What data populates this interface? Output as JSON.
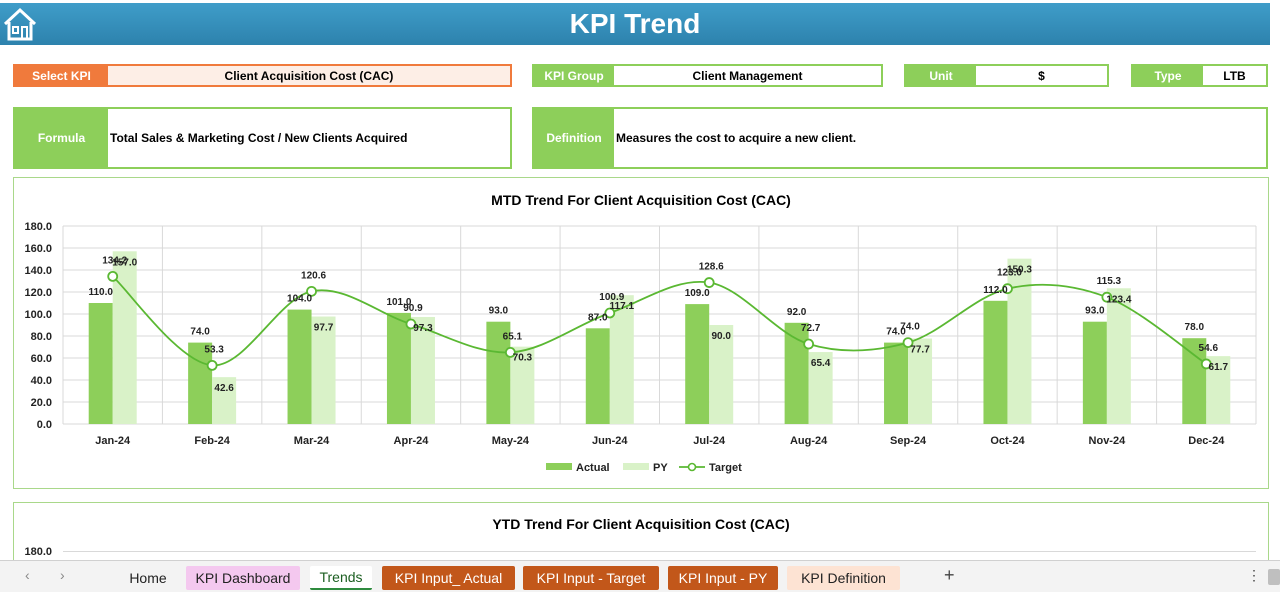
{
  "header": {
    "title": "KPI Trend",
    "home_icon": "home-icon"
  },
  "selectors": {
    "select_kpi": {
      "label": "Select KPI",
      "value": "Client Acquisition Cost (CAC)"
    },
    "kpi_group": {
      "label": "KPI Group",
      "value": "Client Management"
    },
    "unit": {
      "label": "Unit",
      "value": "$"
    },
    "type": {
      "label": "Type",
      "value": "LTB"
    }
  },
  "formula": {
    "label": "Formula",
    "value": "Total Sales & Marketing Cost / New Clients Acquired"
  },
  "definition": {
    "label": "Definition",
    "value": "Measures the cost to acquire a new client."
  },
  "colors": {
    "actual": "#8dcf5a",
    "py": "#d9f2c8",
    "target": "#5ab832",
    "header": "#2d82ad",
    "accent_orange": "#f07a3c"
  },
  "chart_data": [
    {
      "type": "bar",
      "title": "MTD Trend For Client Acquisition Cost (CAC)",
      "categories": [
        "Jan-24",
        "Feb-24",
        "Mar-24",
        "Apr-24",
        "May-24",
        "Jun-24",
        "Jul-24",
        "Aug-24",
        "Sep-24",
        "Oct-24",
        "Nov-24",
        "Dec-24"
      ],
      "series": [
        {
          "name": "Actual",
          "kind": "bar",
          "values": [
            110.0,
            74.0,
            104.0,
            101.0,
            93.0,
            87.0,
            109.0,
            92.0,
            74.0,
            112.0,
            93.0,
            78.0
          ]
        },
        {
          "name": "PY",
          "kind": "bar",
          "values": [
            157.0,
            42.6,
            97.7,
            97.3,
            70.3,
            117.1,
            90.0,
            65.4,
            77.7,
            150.3,
            123.4,
            61.7
          ]
        },
        {
          "name": "Target",
          "kind": "line",
          "values": [
            134.2,
            53.3,
            120.6,
            90.9,
            65.1,
            100.9,
            128.6,
            72.7,
            74.0,
            123.0,
            115.3,
            54.6
          ]
        }
      ],
      "ylim": [
        0,
        180
      ],
      "yticks": [
        "0.0",
        "20.0",
        "40.0",
        "60.0",
        "80.0",
        "100.0",
        "120.0",
        "140.0",
        "160.0",
        "180.0"
      ],
      "grid": true,
      "legend": "bottom"
    },
    {
      "type": "bar",
      "title": "YTD Trend For Client Acquisition Cost (CAC)",
      "yticks_visible": [
        "180.0"
      ]
    }
  ],
  "tabs": {
    "prev": "‹",
    "next": "›",
    "items": [
      "Home",
      "KPI Dashboard",
      "Trends",
      "KPI Input_ Actual",
      "KPI Input - Target",
      "KPI Input - PY",
      "KPI Definition"
    ],
    "add": "+",
    "more": "⋮"
  }
}
